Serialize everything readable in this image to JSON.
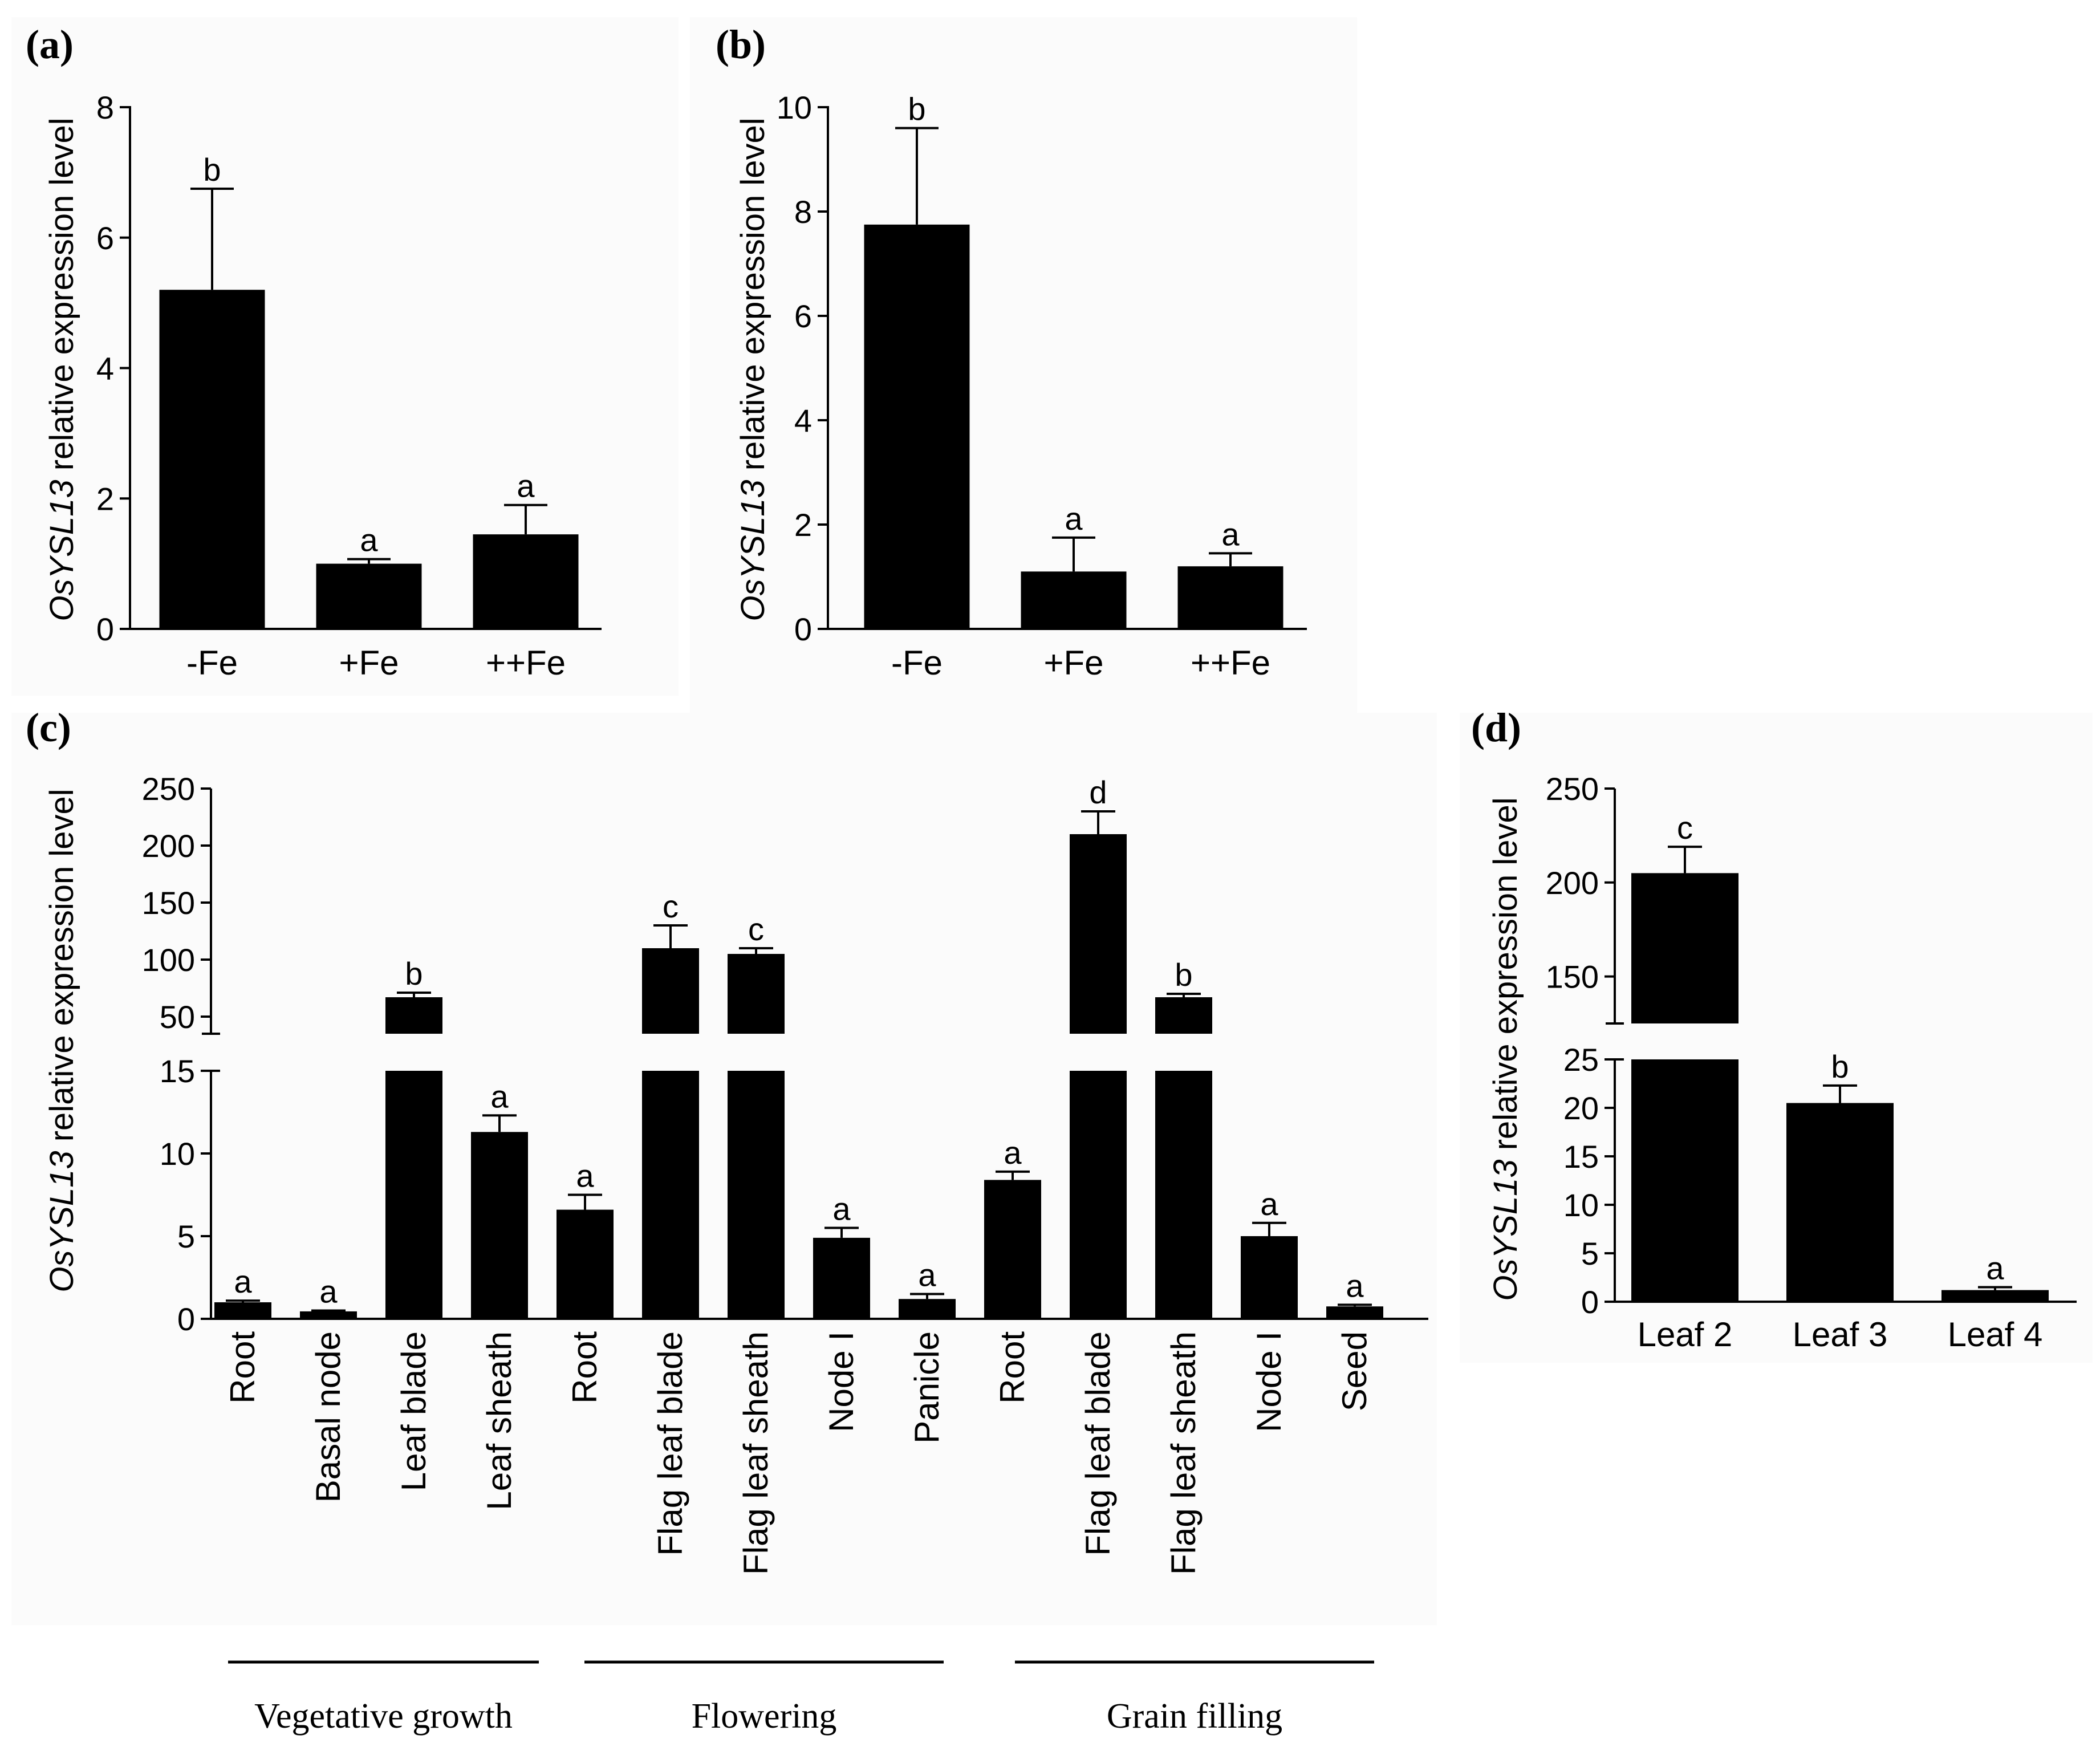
{
  "chart_data": [
    {
      "id": "a",
      "type": "bar",
      "panel_label": "(a)",
      "ylabel_gene": "OsYSL13",
      "ylabel_rest": " relative expression level",
      "categories": [
        "-Fe",
        "+Fe",
        "++Fe"
      ],
      "values": [
        5.2,
        1.0,
        1.45
      ],
      "errors": [
        1.55,
        0.07,
        0.45
      ],
      "letters": [
        "b",
        "a",
        "a"
      ],
      "ylim": [
        0,
        8
      ],
      "yticks": [
        "0",
        "2",
        "4",
        "6",
        "8"
      ]
    },
    {
      "id": "b",
      "type": "bar",
      "panel_label": "(b)",
      "ylabel_gene": "OsYSL13",
      "ylabel_rest": " relative expression level",
      "categories": [
        "-Fe",
        "+Fe",
        "++Fe"
      ],
      "values": [
        7.75,
        1.1,
        1.2
      ],
      "errors": [
        1.85,
        0.65,
        0.25
      ],
      "letters": [
        "b",
        "a",
        "a"
      ],
      "ylim": [
        0,
        10
      ],
      "yticks": [
        "0",
        "2",
        "4",
        "6",
        "8",
        "10"
      ]
    },
    {
      "id": "c",
      "type": "bar",
      "broken_axis": true,
      "panel_label": "(c)",
      "ylabel_gene": "OsYSL13",
      "ylabel_rest": " relative expression level",
      "categories": [
        "Root",
        "Basal node",
        "Leaf blade",
        "Leaf sheath",
        "Root",
        "Flag leaf blade",
        "Flag leaf sheath",
        "Node I",
        "Panicle",
        "Root",
        "Flag leaf blade",
        "Flag leaf sheath",
        "Node I",
        "Seed"
      ],
      "values": [
        1.0,
        0.45,
        67,
        11.3,
        6.6,
        110,
        105,
        4.9,
        1.2,
        8.4,
        210,
        67,
        5.0,
        0.75
      ],
      "errors": [
        0.1,
        0.05,
        4,
        1.0,
        0.9,
        20,
        5,
        0.6,
        0.3,
        0.5,
        20,
        3,
        0.8,
        0.1
      ],
      "letters": [
        "a",
        "a",
        "b",
        "a",
        "a",
        "c",
        "c",
        "a",
        "a",
        "a",
        "d",
        "b",
        "a",
        "a"
      ],
      "lower_ylim": [
        0,
        15
      ],
      "upper_ylim": [
        35,
        250
      ],
      "lower_yticks": [
        "0",
        "5",
        "10",
        "15"
      ],
      "upper_yticks": [
        "50",
        "100",
        "150",
        "200",
        "250"
      ],
      "stages": [
        "Vegetative growth",
        "Flowering",
        "Grain filling"
      ]
    },
    {
      "id": "d",
      "type": "bar",
      "broken_axis": true,
      "panel_label": "(d)",
      "ylabel_gene": "OsYSL13",
      "ylabel_rest": " relative expression level",
      "categories": [
        "Leaf 2",
        "Leaf 3",
        "Leaf 4"
      ],
      "values": [
        205,
        20.5,
        1.2
      ],
      "errors": [
        14,
        1.8,
        0.3
      ],
      "letters": [
        "c",
        "b",
        "a"
      ],
      "lower_ylim": [
        0,
        25
      ],
      "upper_ylim": [
        125,
        250
      ],
      "lower_yticks": [
        "0",
        "5",
        "10",
        "15",
        "20",
        "25"
      ],
      "upper_yticks": [
        "150",
        "200",
        "250"
      ]
    }
  ]
}
